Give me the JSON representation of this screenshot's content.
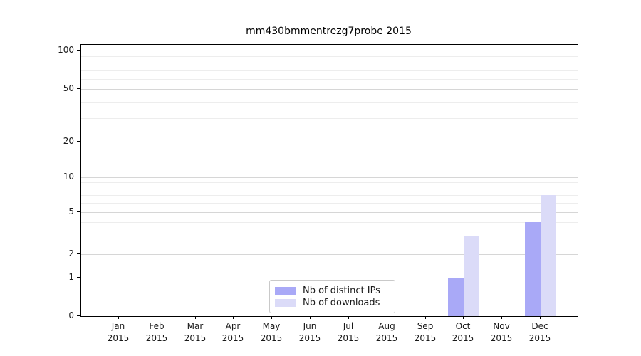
{
  "title": "mm430bmmentrezg7probe 2015",
  "chart_data": {
    "type": "bar",
    "title": "mm430bmmentrezg7probe 2015",
    "categories": [
      "Jan 2015",
      "Feb 2015",
      "Mar 2015",
      "Apr 2015",
      "May 2015",
      "Jun 2015",
      "Jul 2015",
      "Aug 2015",
      "Sep 2015",
      "Oct 2015",
      "Nov 2015",
      "Dec 2015"
    ],
    "series": [
      {
        "name": "Nb of distinct IPs",
        "color": "#a9a9f7",
        "values": [
          0,
          0,
          0,
          0,
          0,
          0,
          0,
          0,
          0,
          1,
          0,
          4
        ]
      },
      {
        "name": "Nb of downloads",
        "color": "#dbdbf8",
        "values": [
          0,
          0,
          0,
          0,
          0,
          0,
          0,
          0,
          0,
          3,
          0,
          7
        ]
      }
    ],
    "xlabel": "",
    "ylabel": "",
    "yscale": "symlog",
    "ylim": [
      0,
      110
    ],
    "ytick_values": [
      0,
      1,
      2,
      5,
      10,
      20,
      50,
      100
    ],
    "ytick_labels": [
      "0",
      "1",
      "2",
      "5",
      "10",
      "20",
      "50",
      "100"
    ],
    "minor_gridline_values": [
      3,
      4,
      6,
      7,
      8,
      9,
      30,
      40,
      60,
      70,
      80,
      90
    ],
    "grid": "horizontal",
    "legend_position": "lower center"
  },
  "colors": {
    "bar_distinct_ips": "#a9a9f7",
    "bar_downloads": "#dbdbf8",
    "grid_major": "#d6d6d6",
    "grid_minor": "#ededed",
    "axis": "#000000",
    "text": "#1a1a1a"
  }
}
